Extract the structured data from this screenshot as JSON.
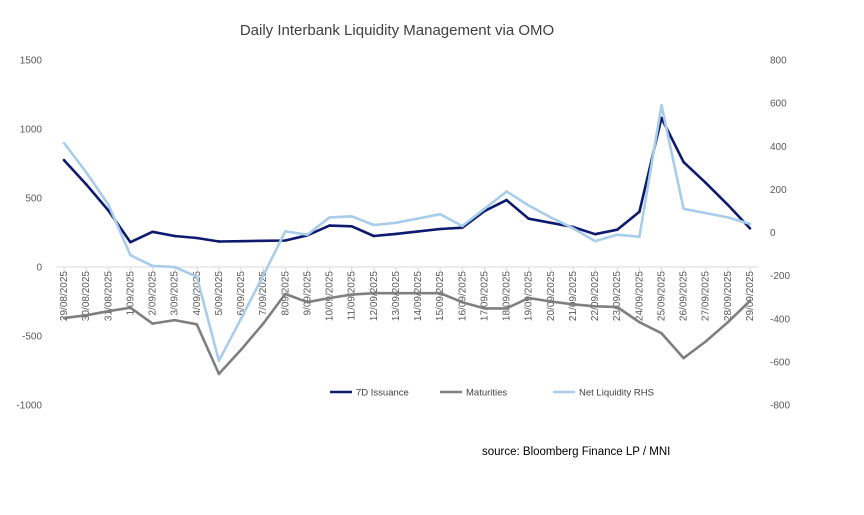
{
  "chart_data": {
    "type": "line",
    "title": "Daily Interbank Liquidity Management via OMO",
    "source": "source: Bloomberg Finance LP / MNI",
    "categories": [
      "29/08/2025",
      "30/08/2025",
      "31/08/2025",
      "1/09/2025",
      "2/09/2025",
      "3/09/2025",
      "4/09/2025",
      "5/09/2025",
      "6/09/2025",
      "7/09/2025",
      "8/09/2025",
      "9/09/2025",
      "10/09/2025",
      "11/09/2025",
      "12/09/2025",
      "13/09/2025",
      "14/09/2025",
      "15/09/2025",
      "16/09/2025",
      "17/09/2025",
      "18/09/2025",
      "19/09/2025",
      "20/09/2025",
      "21/09/2025",
      "22/09/2025",
      "23/09/2025",
      "24/09/2025",
      "25/09/2025",
      "26/09/2025",
      "27/09/2025",
      "28/09/2025",
      "29/09/2025"
    ],
    "left_axis": {
      "min": -1000,
      "max": 1500,
      "ticks": [
        "1500",
        "1000",
        "500",
        "0",
        "-500",
        "-1000"
      ]
    },
    "right_axis": {
      "min": -800,
      "max": 800,
      "ticks": [
        "800",
        "600",
        "400",
        "200",
        "0",
        "-200",
        "-400",
        "-600",
        "-800"
      ]
    },
    "series": [
      {
        "name": "7D Issuance",
        "axis": "left",
        "color": "#0d1a6e",
        "values": [
          775,
          600,
          410,
          180,
          255,
          225,
          210,
          185,
          187,
          190,
          192,
          230,
          300,
          295,
          225,
          240,
          258,
          275,
          285,
          405,
          485,
          350,
          320,
          290,
          238,
          270,
          400,
          1080,
          760,
          610,
          450,
          280
        ]
      },
      {
        "name": "Maturities",
        "axis": "left",
        "color": "#7f7f7f",
        "values": [
          -370,
          -350,
          -320,
          -295,
          -410,
          -385,
          -415,
          -775,
          -600,
          -410,
          -195,
          -255,
          -225,
          -200,
          -190,
          -190,
          -190,
          -190,
          -255,
          -300,
          -300,
          -225,
          -250,
          -270,
          -285,
          -290,
          -400,
          -480,
          -660,
          -540,
          -400,
          -245
        ]
      },
      {
        "name": "Net Liquidity RHS",
        "axis": "right",
        "color": "#a8cdea",
        "values": [
          415,
          280,
          130,
          -105,
          -155,
          -160,
          -205,
          -595,
          -400,
          -200,
          5,
          -10,
          70,
          75,
          35,
          45,
          65,
          85,
          30,
          110,
          190,
          125,
          70,
          20,
          -40,
          -10,
          -20,
          590,
          110,
          90,
          70,
          40
        ]
      }
    ]
  }
}
